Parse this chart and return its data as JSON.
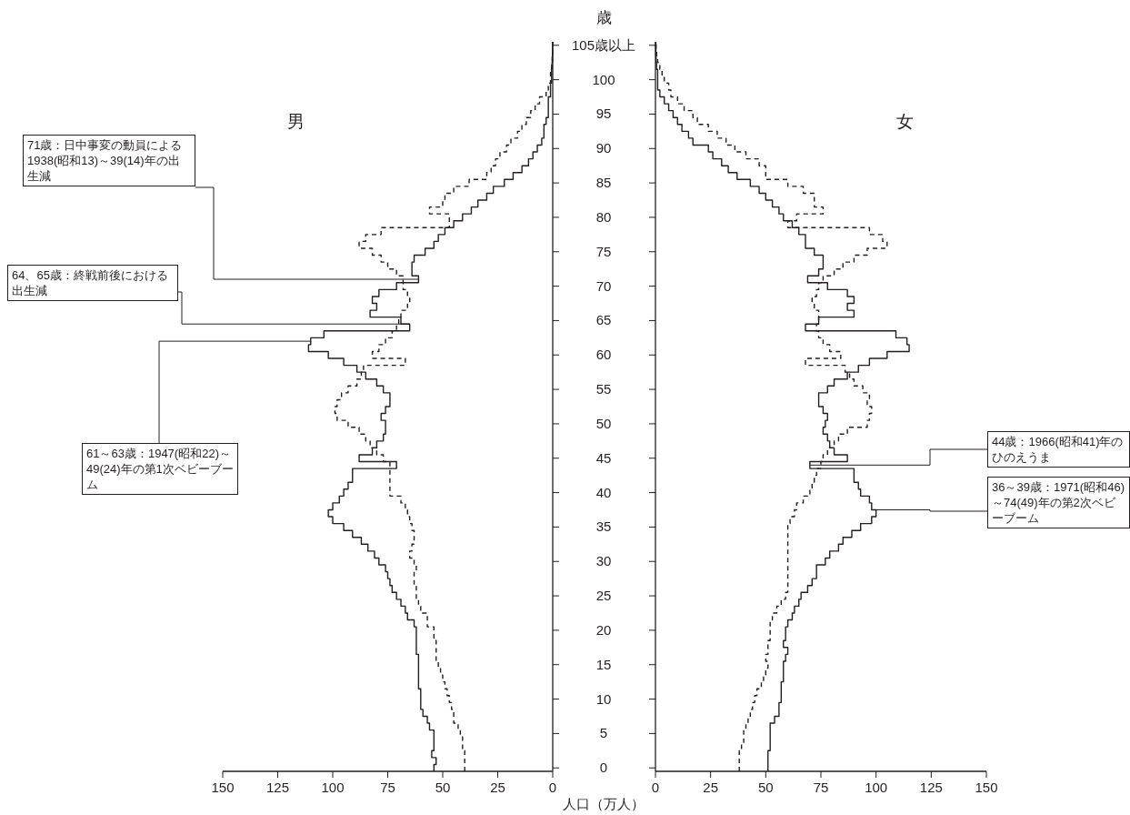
{
  "chart_data": [
    {
      "type": "step",
      "orientation": "horizontal",
      "title": "男",
      "ylabel": "歳",
      "xlabel": "人口（万人）",
      "x": [
        0,
        1,
        2,
        3,
        4,
        5,
        6,
        7,
        8,
        9,
        10,
        11,
        12,
        13,
        14,
        15,
        16,
        17,
        18,
        19,
        20,
        21,
        22,
        23,
        24,
        25,
        26,
        27,
        28,
        29,
        30,
        31,
        32,
        33,
        34,
        35,
        36,
        37,
        38,
        39,
        40,
        41,
        42,
        43,
        44,
        45,
        46,
        47,
        48,
        49,
        50,
        51,
        52,
        53,
        54,
        55,
        56,
        57,
        58,
        59,
        60,
        61,
        62,
        63,
        64,
        65,
        66,
        67,
        68,
        69,
        70,
        71,
        72,
        73,
        74,
        75,
        76,
        77,
        78,
        79,
        80,
        81,
        82,
        83,
        84,
        85,
        86,
        87,
        88,
        89,
        90,
        91,
        92,
        93,
        94,
        95,
        96,
        97,
        98,
        99,
        100,
        101,
        102,
        103,
        104,
        105
      ],
      "xlim": [
        150,
        0
      ],
      "xticks": [
        150,
        125,
        100,
        75,
        50,
        25,
        0
      ],
      "ylim": [
        -0.5,
        105.5
      ],
      "yticks": [
        0,
        5,
        10,
        15,
        20,
        25,
        30,
        35,
        40,
        45,
        50,
        55,
        60,
        65,
        70,
        75,
        80,
        85,
        90,
        95,
        100,
        {
          "value": 105,
          "label": "105歳以上"
        }
      ],
      "series": [
        {
          "color": "#231f20",
          "line_style": "solid",
          "values": [
            54,
            53,
            55,
            54,
            54,
            54,
            56,
            57,
            59,
            60,
            60,
            60,
            61,
            61,
            61,
            61,
            61,
            62,
            62,
            62,
            62,
            63,
            66,
            67,
            69,
            71,
            73,
            74,
            75,
            76,
            79,
            81,
            84,
            87,
            91,
            95,
            100,
            102,
            100,
            97,
            95,
            93,
            91,
            91,
            71,
            88,
            82,
            80,
            77,
            76,
            76,
            78,
            76,
            74,
            74,
            77,
            80,
            85,
            89,
            95,
            102,
            111,
            110,
            104,
            65,
            69,
            83,
            80,
            82,
            79,
            71,
            61,
            64,
            64,
            63,
            58,
            54,
            52,
            49,
            45,
            41,
            37,
            34,
            30,
            27,
            22,
            18,
            14,
            11,
            9,
            7,
            5,
            4,
            4,
            3,
            2,
            2,
            2,
            1,
            1,
            0.5,
            0.5,
            0.3,
            0.2,
            0.1,
            0.1
          ]
        },
        {
          "color": "#231f20",
          "line_style": "dashed",
          "values": [
            40,
            40,
            40,
            41,
            41,
            42,
            43,
            45,
            45,
            46,
            47,
            48,
            49,
            50,
            51,
            52,
            53,
            53,
            53,
            54,
            54,
            57,
            57,
            60,
            61,
            62,
            62,
            63,
            63,
            62,
            63,
            65,
            64,
            63,
            63,
            64,
            65,
            66,
            67,
            69,
            74,
            74,
            74,
            74,
            74,
            77,
            80,
            83,
            85,
            88,
            93,
            98,
            99,
            98,
            96,
            93,
            89,
            87,
            86,
            67,
            82,
            79,
            76,
            73,
            71,
            70,
            69,
            66,
            65,
            66,
            68,
            68,
            71,
            75,
            78,
            82,
            88,
            85,
            78,
            47,
            47,
            56,
            50,
            49,
            45,
            38,
            30,
            28,
            26,
            24,
            21,
            19,
            16,
            14,
            12,
            10,
            8,
            6,
            3,
            2,
            1,
            1,
            0.5,
            0.2,
            0.1,
            0.1
          ]
        }
      ],
      "annotations": [
        {
          "text": "71歳：日中事変の動員による1938(昭和13)～39(14)年の出生減",
          "x": 61,
          "y": 71
        },
        {
          "text": "64、65歳：終戦前後における出生減",
          "x": 65,
          "y": 64.5
        },
        {
          "text": "61～63歳：1947(昭和22)～49(24)年の第1次ベビーブーム",
          "x": 110,
          "y": 62
        }
      ]
    },
    {
      "type": "step",
      "orientation": "horizontal",
      "title": "女",
      "tick_labels": "x",
      "x": [
        0,
        1,
        2,
        3,
        4,
        5,
        6,
        7,
        8,
        9,
        10,
        11,
        12,
        13,
        14,
        15,
        16,
        17,
        18,
        19,
        20,
        21,
        22,
        23,
        24,
        25,
        26,
        27,
        28,
        29,
        30,
        31,
        32,
        33,
        34,
        35,
        36,
        37,
        38,
        39,
        40,
        41,
        42,
        43,
        44,
        45,
        46,
        47,
        48,
        49,
        50,
        51,
        52,
        53,
        54,
        55,
        56,
        57,
        58,
        59,
        60,
        61,
        62,
        63,
        64,
        65,
        66,
        67,
        68,
        69,
        70,
        71,
        72,
        73,
        74,
        75,
        76,
        77,
        78,
        79,
        80,
        81,
        82,
        83,
        84,
        85,
        86,
        87,
        88,
        89,
        90,
        91,
        92,
        93,
        94,
        95,
        96,
        97,
        98,
        99,
        100,
        101,
        102,
        103,
        104,
        105
      ],
      "xlim": [
        0,
        150
      ],
      "xticks": [
        0,
        25,
        50,
        75,
        100,
        125,
        150
      ],
      "ylim": [
        -0.5,
        105.5
      ],
      "yticks": [
        0,
        5,
        10,
        15,
        20,
        25,
        30,
        35,
        40,
        45,
        50,
        55,
        60,
        65,
        70,
        75,
        80,
        85,
        90,
        95,
        100,
        105
      ],
      "series": [
        {
          "color": "#231f20",
          "line_style": "solid",
          "values": [
            51,
            51,
            51,
            52,
            52,
            52,
            52,
            54,
            56,
            56,
            57,
            57,
            57,
            58,
            58,
            58,
            59,
            60,
            58,
            59,
            59,
            60,
            62,
            63,
            65,
            66,
            69,
            71,
            73,
            73,
            77,
            79,
            83,
            85,
            89,
            93,
            98,
            100,
            98,
            97,
            93,
            92,
            90,
            90,
            70,
            87,
            81,
            79,
            78,
            76,
            77,
            78,
            76,
            74,
            74,
            78,
            81,
            87,
            92,
            97,
            105,
            115,
            114,
            109,
            68,
            74,
            90,
            87,
            90,
            87,
            78,
            69,
            74,
            76,
            76,
            72,
            68,
            68,
            65,
            62,
            58,
            56,
            53,
            50,
            47,
            43,
            37,
            33,
            30,
            26,
            24,
            17,
            15,
            12,
            10,
            8,
            6,
            4,
            2,
            1,
            1,
            1,
            0.5,
            0.3,
            0.2,
            0.1
          ]
        },
        {
          "color": "#231f20",
          "line_style": "dashed",
          "values": [
            38,
            38,
            38,
            39,
            40,
            40,
            41,
            42,
            43,
            44,
            45,
            46,
            48,
            49,
            50,
            51,
            50,
            51,
            51,
            52,
            52,
            52,
            53,
            55,
            57,
            59,
            60,
            60,
            60,
            60,
            60,
            60,
            60,
            60,
            60,
            60,
            61,
            63,
            64,
            67,
            70,
            71,
            72,
            73,
            75,
            76,
            78,
            81,
            83,
            87,
            96,
            97,
            98,
            96,
            97,
            94,
            90,
            88,
            86,
            68,
            84,
            79,
            76,
            74,
            73,
            74,
            74,
            72,
            71,
            73,
            74,
            76,
            81,
            85,
            90,
            96,
            105,
            103,
            97,
            60,
            64,
            76,
            72,
            72,
            67,
            60,
            50,
            50,
            47,
            41,
            36,
            32,
            28,
            24,
            19,
            17,
            13,
            10,
            7,
            6,
            4,
            3,
            2,
            1,
            0.5,
            0.3
          ]
        }
      ],
      "annotations": [
        {
          "text": "44歳：1966(昭和41)年のひのえうま",
          "x": 70,
          "y": 44
        },
        {
          "text": "36～39歳：1971(昭和46)～74(49)年の第2次ベビーブーム",
          "x": 100,
          "y": 37.5
        }
      ]
    }
  ]
}
